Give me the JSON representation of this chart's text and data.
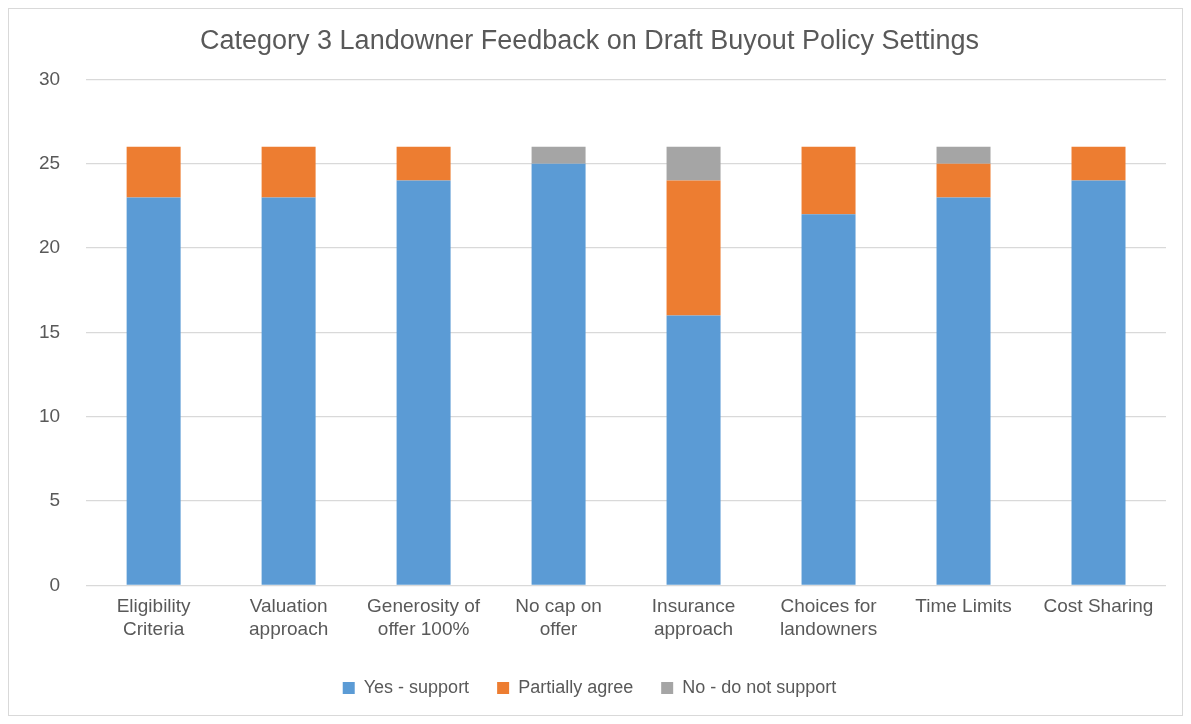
{
  "chart_data": {
    "type": "bar",
    "title": "Category 3 Landowner Feedback on Draft Buyout Policy Settings",
    "categories": [
      "Eligibility Criteria",
      "Valuation approach",
      "Generosity of offer 100%",
      "No cap on offer",
      "Insurance approach",
      "Choices for landowners",
      "Time Limits",
      "Cost Sharing"
    ],
    "series": [
      {
        "name": "Yes - support",
        "color": "#5b9bd5",
        "values": [
          23,
          23,
          24,
          25,
          16,
          22,
          23,
          24
        ]
      },
      {
        "name": "Partially agree",
        "color": "#ed7d31",
        "values": [
          3,
          3,
          2,
          0,
          8,
          4,
          2,
          2
        ]
      },
      {
        "name": "No - do not support",
        "color": "#a5a5a5",
        "values": [
          0,
          0,
          0,
          1,
          2,
          0,
          1,
          0
        ]
      }
    ],
    "stacked": true,
    "ylim": [
      0,
      30
    ],
    "yticks": [
      0,
      5,
      10,
      15,
      20,
      25,
      30
    ],
    "grid": "y",
    "legend": "bottom"
  }
}
